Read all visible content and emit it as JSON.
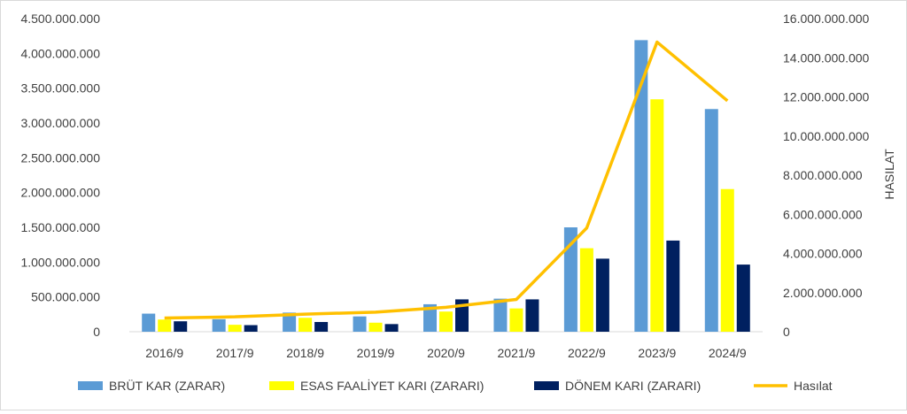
{
  "chart_data": {
    "type": "bar",
    "categories": [
      "2016/9",
      "2017/9",
      "2018/9",
      "2019/9",
      "2020/9",
      "2021/9",
      "2022/9",
      "2023/9",
      "2024/9"
    ],
    "series": [
      {
        "name": "BRÜT KAR (ZARAR)",
        "type": "bar",
        "axis": "left",
        "color": "#5B9BD5",
        "values": [
          260000000,
          180000000,
          275000000,
          220000000,
          395000000,
          475000000,
          1500000000,
          4190000000,
          3200000000
        ]
      },
      {
        "name": "ESAS FAALİYET KARI (ZARARI)",
        "type": "bar",
        "axis": "left",
        "color": "#FFFF00",
        "values": [
          175000000,
          100000000,
          200000000,
          130000000,
          290000000,
          335000000,
          1200000000,
          3340000000,
          2050000000
        ]
      },
      {
        "name": "DÖNEM KARI (ZARARI)",
        "type": "bar",
        "axis": "left",
        "color": "#002060",
        "values": [
          150000000,
          95000000,
          140000000,
          110000000,
          465000000,
          465000000,
          1050000000,
          1310000000,
          965000000
        ]
      },
      {
        "name": "Hasılat",
        "type": "line",
        "axis": "right",
        "color": "#FFC000",
        "values": [
          700000000,
          760000000,
          900000000,
          1000000000,
          1250000000,
          1650000000,
          5300000000,
          14800000000,
          11800000000
        ]
      }
    ],
    "y_left": {
      "range": [
        0,
        4500000000
      ],
      "ticks": [
        "0",
        "500.000.000",
        "1.000.000.000",
        "1.500.000.000",
        "2.000.000.000",
        "2.500.000.000",
        "3.000.000.000",
        "3.500.000.000",
        "4.000.000.000",
        "4.500.000.000"
      ]
    },
    "y_right": {
      "label": "HASILAT",
      "range": [
        0,
        16000000000
      ],
      "ticks": [
        "0",
        "2.000.000.000",
        "4.000.000.000",
        "6.000.000.000",
        "8.000.000.000",
        "10.000.000.000",
        "12.000.000.000",
        "14.000.000.000",
        "16.000.000.000"
      ]
    },
    "grid": false,
    "legend_position": "bottom"
  }
}
